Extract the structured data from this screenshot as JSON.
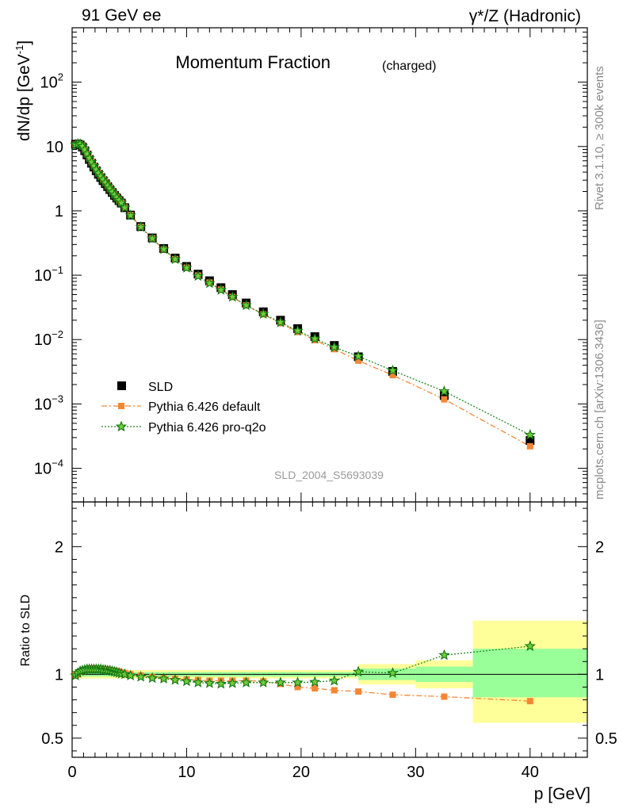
{
  "header": {
    "left": "91 GeV ee",
    "right": "γ*/Z (Hadronic)"
  },
  "side_labels": {
    "rivet": "Rivet 3.1.10, ≥ 300k events",
    "mcplots": "mcplots.cern.ch [arXiv:1306.3436]"
  },
  "chart_data": [
    {
      "type": "scatter",
      "panel": "main",
      "title": "Momentum Fraction",
      "title_suffix": "(charged)",
      "ylabel": "dN/dp [GeV",
      "ylabel_exp": "-1",
      "ylabel_close": "]",
      "xlabel": "p [GeV]",
      "xlim": [
        0,
        45
      ],
      "ylim": [
        3e-05,
        700
      ],
      "yscale": "log",
      "watermark": "SLD_2004_S5693039",
      "x_tick_labels": [
        "0",
        "10",
        "20",
        "30",
        "40"
      ],
      "y_tick_labels": [
        {
          "value": 0.0001,
          "base": "10",
          "exp": "−4"
        },
        {
          "value": 0.001,
          "base": "10",
          "exp": "−3"
        },
        {
          "value": 0.01,
          "base": "10",
          "exp": "−2"
        },
        {
          "value": 0.1,
          "base": "10",
          "exp": "−1"
        },
        {
          "value": 1,
          "base": "1",
          "exp": ""
        },
        {
          "value": 10,
          "base": "10",
          "exp": ""
        },
        {
          "value": 100,
          "base": "10",
          "exp": "2"
        }
      ],
      "legend": [
        {
          "key": "sld",
          "label": "SLD"
        },
        {
          "key": "def",
          "label": "Pythia 6.426 default"
        },
        {
          "key": "pro",
          "label": "Pythia 6.426 pro-q2o"
        }
      ],
      "x": [
        0.3,
        0.5,
        0.7,
        0.9,
        1.1,
        1.3,
        1.5,
        1.7,
        1.9,
        2.1,
        2.3,
        2.5,
        2.7,
        2.9,
        3.1,
        3.3,
        3.5,
        3.7,
        3.9,
        4.1,
        4.3,
        4.6,
        5.1,
        6.0,
        7.0,
        8.0,
        9.0,
        10.0,
        11.0,
        12.0,
        13.0,
        14.0,
        15.2,
        16.7,
        18.2,
        19.7,
        21.2,
        22.9,
        25.0,
        28.0,
        32.5,
        40.0
      ],
      "series": [
        {
          "name": "SLD",
          "values": [
            10.8,
            10.9,
            10.6,
            9.8,
            8.6,
            7.4,
            6.3,
            5.5,
            4.8,
            4.2,
            3.7,
            3.3,
            2.95,
            2.65,
            2.38,
            2.14,
            1.93,
            1.74,
            1.58,
            1.44,
            1.32,
            1.12,
            0.86,
            0.57,
            0.38,
            0.26,
            0.185,
            0.137,
            0.104,
            0.082,
            0.064,
            0.05,
            0.037,
            0.027,
            0.02,
            0.0148,
            0.0111,
            0.0081,
            0.0054,
            0.0032,
            0.00135,
            0.00027
          ]
        },
        {
          "name": "Pythia 6.426 default",
          "values": [
            10.7,
            10.9,
            10.8,
            10.1,
            8.9,
            7.7,
            6.6,
            5.75,
            5.0,
            4.39,
            3.86,
            3.44,
            3.07,
            2.75,
            2.46,
            2.21,
            1.99,
            1.79,
            1.62,
            1.47,
            1.34,
            1.13,
            0.86,
            0.565,
            0.373,
            0.252,
            0.178,
            0.131,
            0.099,
            0.077,
            0.06,
            0.046,
            0.034,
            0.0247,
            0.018,
            0.0131,
            0.0098,
            0.0071,
            0.0047,
            0.0028,
            0.00118,
            0.00022
          ]
        },
        {
          "name": "Pythia 6.426 pro-q2o",
          "values": [
            10.7,
            11.0,
            10.9,
            10.1,
            8.9,
            7.7,
            6.6,
            5.75,
            5.0,
            4.39,
            3.86,
            3.44,
            3.07,
            2.75,
            2.46,
            2.21,
            1.98,
            1.78,
            1.61,
            1.46,
            1.33,
            1.12,
            0.85,
            0.56,
            0.37,
            0.253,
            0.177,
            0.13,
            0.097,
            0.075,
            0.059,
            0.046,
            0.034,
            0.025,
            0.0185,
            0.0137,
            0.0103,
            0.0076,
            0.0055,
            0.0033,
            0.00157,
            0.00033
          ]
        }
      ]
    },
    {
      "type": "scatter",
      "panel": "ratio",
      "ylabel": "Ratio to SLD",
      "xlabel": "p [GeV]",
      "xlim": [
        0,
        45
      ],
      "ylim": [
        0.35,
        2.35
      ],
      "y_tick_labels": [
        "0.5",
        "1",
        "2"
      ],
      "x_tick_labels": [
        "0",
        "10",
        "20",
        "30",
        "40"
      ],
      "bands": [
        {
          "x0": 0,
          "x1": 25,
          "yellow": [
            0.967,
            1.033
          ],
          "green": [
            0.983,
            1.017
          ]
        },
        {
          "x0": 25,
          "x1": 30,
          "yellow": [
            0.92,
            1.08
          ],
          "green": [
            0.955,
            1.045
          ]
        },
        {
          "x0": 30,
          "x1": 35,
          "yellow": [
            0.89,
            1.11
          ],
          "green": [
            0.94,
            1.06
          ]
        },
        {
          "x0": 35,
          "x1": 45,
          "yellow": [
            0.62,
            1.42
          ],
          "green": [
            0.82,
            1.2
          ]
        }
      ],
      "x": [
        0.3,
        0.5,
        0.7,
        0.9,
        1.1,
        1.3,
        1.5,
        1.7,
        1.9,
        2.1,
        2.3,
        2.5,
        2.7,
        2.9,
        3.1,
        3.3,
        3.5,
        3.7,
        3.9,
        4.1,
        4.3,
        4.6,
        5.1,
        6.0,
        7.0,
        8.0,
        9.0,
        10.0,
        11.0,
        12.0,
        13.0,
        14.0,
        15.2,
        16.7,
        18.2,
        19.7,
        21.2,
        22.9,
        25.0,
        28.0,
        32.5,
        40.0
      ],
      "series": [
        {
          "name": "Pythia 6.426 default",
          "values": [
            0.99,
            1.0,
            1.02,
            1.03,
            1.035,
            1.04,
            1.045,
            1.045,
            1.045,
            1.045,
            1.045,
            1.045,
            1.04,
            1.04,
            1.035,
            1.035,
            1.03,
            1.03,
            1.025,
            1.02,
            1.015,
            1.01,
            1.0,
            0.99,
            0.98,
            0.97,
            0.965,
            0.96,
            0.955,
            0.95,
            0.95,
            0.95,
            0.95,
            0.945,
            0.925,
            0.9,
            0.89,
            0.875,
            0.865,
            0.84,
            0.825,
            0.79
          ]
        },
        {
          "name": "Pythia 6.426 pro-q2o",
          "values": [
            0.99,
            1.01,
            1.025,
            1.03,
            1.035,
            1.04,
            1.04,
            1.04,
            1.04,
            1.04,
            1.04,
            1.04,
            1.035,
            1.035,
            1.03,
            1.03,
            1.025,
            1.02,
            1.015,
            1.01,
            1.005,
            1.0,
            0.99,
            0.98,
            0.97,
            0.965,
            0.955,
            0.945,
            0.935,
            0.93,
            0.925,
            0.93,
            0.935,
            0.935,
            0.935,
            0.935,
            0.94,
            0.95,
            1.02,
            1.01,
            1.15,
            1.22
          ]
        }
      ]
    }
  ]
}
